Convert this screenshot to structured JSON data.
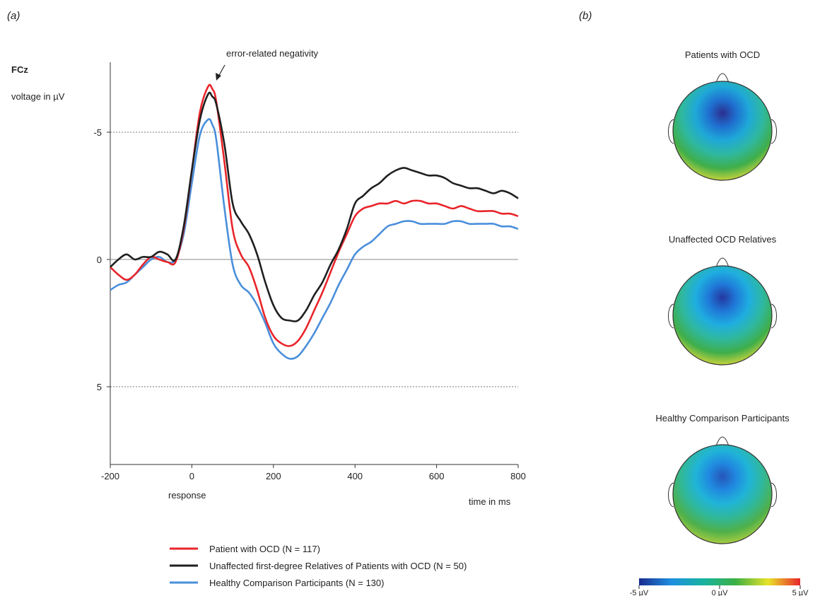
{
  "figure": {
    "panel_a_label": "(a)",
    "panel_b_label": "(b)"
  },
  "chart_data": [
    {
      "type": "line",
      "channel_label": "FCz",
      "ylabel": "voltage in µV",
      "xlabel": "time in ms",
      "x_sublabel": "response",
      "annotation": "error-related negativity",
      "xlim": [
        -200,
        800
      ],
      "ylim": [
        8,
        -8
      ],
      "y_inverted": true,
      "x_ticks": [
        "-200",
        "0",
        "200",
        "400",
        "600",
        "800"
      ],
      "y_ticks": [
        "-5",
        "0",
        "5"
      ],
      "reference_lines": [
        -5,
        5
      ],
      "x": [
        -200,
        -180,
        -160,
        -140,
        -120,
        -100,
        -80,
        -60,
        -40,
        -20,
        0,
        20,
        40,
        50,
        60,
        80,
        100,
        120,
        140,
        160,
        180,
        200,
        220,
        240,
        260,
        280,
        300,
        320,
        340,
        360,
        380,
        400,
        420,
        440,
        460,
        480,
        500,
        520,
        540,
        560,
        580,
        600,
        620,
        640,
        660,
        680,
        700,
        720,
        740,
        760,
        780,
        800
      ],
      "series": [
        {
          "name": "Patient with OCD (N = 117)",
          "color": "#e8252b",
          "values": [
            0.3,
            0.6,
            0.8,
            0.6,
            0.2,
            -0.1,
            0.0,
            0.1,
            0.1,
            -1.2,
            -3.5,
            -5.8,
            -6.8,
            -6.7,
            -6.2,
            -3.8,
            -1.2,
            -0.2,
            0.3,
            1.2,
            2.3,
            3.0,
            3.3,
            3.4,
            3.2,
            2.7,
            2.0,
            1.3,
            0.5,
            -0.3,
            -1.0,
            -1.7,
            -2.0,
            -2.1,
            -2.2,
            -2.2,
            -2.3,
            -2.2,
            -2.3,
            -2.3,
            -2.2,
            -2.2,
            -2.1,
            -2.0,
            -2.1,
            -2.0,
            -1.9,
            -1.9,
            -1.9,
            -1.8,
            -1.8,
            -1.7
          ]
        },
        {
          "name": "Unaffected first-degree Relatives of Patients with OCD (N = 50)",
          "color": "#1f1f1f",
          "values": [
            0.3,
            0.0,
            -0.2,
            0.0,
            -0.1,
            -0.1,
            -0.3,
            -0.2,
            0.0,
            -1.3,
            -3.5,
            -5.5,
            -6.5,
            -6.4,
            -6.1,
            -4.5,
            -2.2,
            -1.5,
            -1.0,
            -0.2,
            0.9,
            1.8,
            2.3,
            2.4,
            2.4,
            2.0,
            1.4,
            0.9,
            0.2,
            -0.4,
            -1.2,
            -2.2,
            -2.5,
            -2.8,
            -3.0,
            -3.3,
            -3.5,
            -3.6,
            -3.5,
            -3.4,
            -3.3,
            -3.3,
            -3.2,
            -3.0,
            -2.9,
            -2.8,
            -2.8,
            -2.7,
            -2.6,
            -2.7,
            -2.6,
            -2.4
          ]
        },
        {
          "name": "Healthy Comparison Participants (N = 130)",
          "color": "#4a8fdb",
          "values": [
            1.2,
            1.0,
            0.9,
            0.6,
            0.3,
            0.0,
            -0.1,
            0.1,
            0.0,
            -1.0,
            -3.0,
            -4.9,
            -5.5,
            -5.3,
            -4.7,
            -2.0,
            0.2,
            1.0,
            1.3,
            1.8,
            2.5,
            3.3,
            3.7,
            3.9,
            3.8,
            3.4,
            2.9,
            2.3,
            1.7,
            1.0,
            0.4,
            -0.2,
            -0.5,
            -0.7,
            -1.0,
            -1.3,
            -1.4,
            -1.5,
            -1.5,
            -1.4,
            -1.4,
            -1.4,
            -1.4,
            -1.5,
            -1.5,
            -1.4,
            -1.4,
            -1.4,
            -1.4,
            -1.3,
            -1.3,
            -1.2
          ]
        }
      ]
    },
    {
      "type": "heatmap",
      "subtype": "scalp topography",
      "colormap": [
        "#1a2b8f",
        "#1e8fe0",
        "#18b3a0",
        "#3cb043",
        "#e8e32a",
        "#e8252b"
      ],
      "scale_min": -5,
      "scale_max": 5,
      "colorbar_ticks": [
        "-5 µV",
        "0 µV",
        "5 µV"
      ],
      "maps": [
        {
          "title": "Patients with OCD",
          "center_value": -5.0,
          "color_stops": [
            "#2b2f8f",
            "#1f6fd0",
            "#1fa8d8",
            "#2fb8a0",
            "#3fae4a",
            "#d8d83a",
            "#f2e02a"
          ]
        },
        {
          "title": "Unaffected OCD Relatives",
          "center_value": -4.6,
          "color_stops": [
            "#2438a0",
            "#1f78d8",
            "#1faee0",
            "#2fb8a0",
            "#3fae4a",
            "#dcd83a",
            "#f5c021"
          ]
        },
        {
          "title": "Healthy Comparison Participants",
          "center_value": -4.4,
          "color_stops": [
            "#2555b8",
            "#2088e0",
            "#20b4d8",
            "#30b89a",
            "#4fb04a",
            "#b4d040",
            "#e8e23a"
          ]
        }
      ]
    }
  ]
}
